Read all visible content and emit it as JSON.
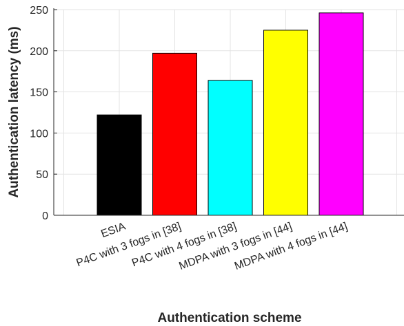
{
  "chart_data": {
    "type": "bar",
    "xlabel": "Authentication scheme",
    "ylabel": "Authentication latency (ms)",
    "ylim": [
      0,
      250
    ],
    "yticks": [
      0,
      50,
      100,
      150,
      200,
      250
    ],
    "grid": true,
    "categories": [
      "ESIA",
      "P4C with 3 fogs in [38]",
      "P4C with 4 fogs in [38]",
      "MDPA with 3 fogs in [44]",
      "MDPA with 4 fogs in [44]"
    ],
    "values": [
      122,
      197,
      164,
      225,
      246
    ],
    "colors": [
      "#000000",
      "#ff0000",
      "#00ffff",
      "#ffff00",
      "#ff00ff"
    ]
  }
}
